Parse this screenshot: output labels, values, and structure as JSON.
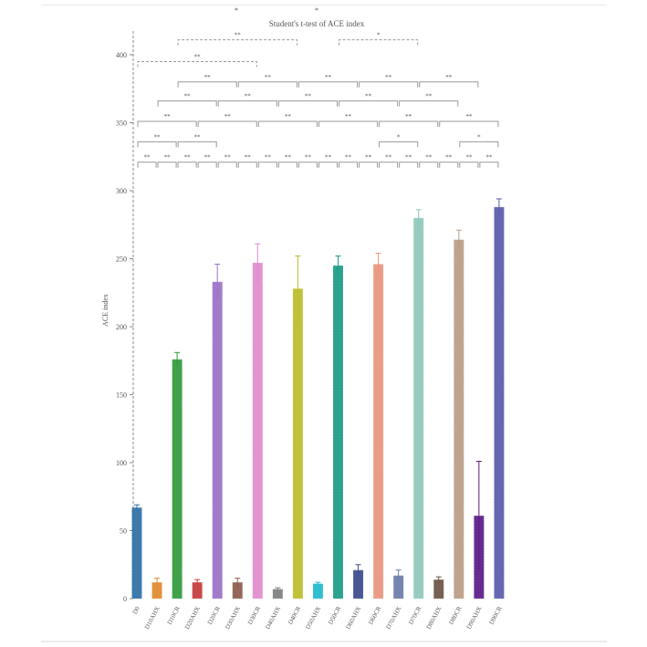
{
  "chart_data": {
    "type": "bar",
    "title": "Student's t-test of ACE index",
    "xlabel": "",
    "ylabel": "ACE index",
    "ylim": [
      0,
      420
    ],
    "yticks": [
      0,
      50,
      100,
      150,
      200,
      250,
      300,
      350,
      400
    ],
    "grid": false,
    "legend": "none",
    "categories": [
      "D0",
      "D10AHX",
      "D10CR",
      "D20AHX",
      "D20CR",
      "D30AHX",
      "D30CR",
      "D40AHX",
      "D40CR",
      "D50AHX",
      "D50CR",
      "D60AHX",
      "D60CR",
      "D70AHX",
      "D70CR",
      "D80AHX",
      "D80CR",
      "D90AHX",
      "D90CR"
    ],
    "values": [
      67,
      12,
      176,
      12,
      233,
      12,
      247,
      7,
      228,
      11,
      245,
      21,
      246,
      17,
      280,
      14,
      264,
      61,
      288
    ],
    "errors": [
      2,
      3,
      5,
      2,
      13,
      3,
      14,
      1,
      24,
      1,
      7,
      4,
      8,
      4,
      6,
      2,
      7,
      40,
      6
    ],
    "colors": [
      "#2f6fa6",
      "#e0892b",
      "#2f9a3c",
      "#c43a3c",
      "#9a70c6",
      "#8a5a4c",
      "#e08acc",
      "#7d7d7d",
      "#bcbd2a",
      "#20b8cc",
      "#1a9a88",
      "#3a4a8c",
      "#e8957c",
      "#6a7aa8",
      "#8cc8ba",
      "#6a5242",
      "#b89c84",
      "#5a1a86",
      "#5a5aaa"
    ],
    "significance": [
      {
        "a": 0,
        "b": 1,
        "y": 321,
        "label": "**"
      },
      {
        "a": 1,
        "b": 2,
        "y": 321,
        "label": "**"
      },
      {
        "a": 2,
        "b": 3,
        "y": 321,
        "label": "**"
      },
      {
        "a": 3,
        "b": 4,
        "y": 321,
        "label": "**"
      },
      {
        "a": 4,
        "b": 5,
        "y": 321,
        "label": "**"
      },
      {
        "a": 5,
        "b": 6,
        "y": 321,
        "label": "**"
      },
      {
        "a": 6,
        "b": 7,
        "y": 321,
        "label": "**"
      },
      {
        "a": 7,
        "b": 8,
        "y": 321,
        "label": "**"
      },
      {
        "a": 8,
        "b": 9,
        "y": 321,
        "label": "**"
      },
      {
        "a": 9,
        "b": 10,
        "y": 321,
        "label": "**"
      },
      {
        "a": 10,
        "b": 11,
        "y": 321,
        "label": "**"
      },
      {
        "a": 11,
        "b": 12,
        "y": 321,
        "label": "**"
      },
      {
        "a": 12,
        "b": 13,
        "y": 321,
        "label": "**"
      },
      {
        "a": 13,
        "b": 14,
        "y": 321,
        "label": "**"
      },
      {
        "a": 14,
        "b": 15,
        "y": 321,
        "label": "**"
      },
      {
        "a": 15,
        "b": 16,
        "y": 321,
        "label": "**"
      },
      {
        "a": 16,
        "b": 17,
        "y": 321,
        "label": "**"
      },
      {
        "a": 17,
        "b": 18,
        "y": 321,
        "label": "**"
      },
      {
        "a": 0,
        "b": 2,
        "y": 336,
        "label": "**"
      },
      {
        "a": 2,
        "b": 4,
        "y": 336,
        "label": "**"
      },
      {
        "a": 12,
        "b": 14,
        "y": 336,
        "label": "*"
      },
      {
        "a": 16,
        "b": 18,
        "y": 336,
        "label": "*"
      },
      {
        "a": 0,
        "b": 3,
        "y": 351,
        "label": "**"
      },
      {
        "a": 3,
        "b": 6,
        "y": 351,
        "label": "**"
      },
      {
        "a": 6,
        "b": 9,
        "y": 351,
        "label": "**"
      },
      {
        "a": 9,
        "b": 12,
        "y": 351,
        "label": "**"
      },
      {
        "a": 12,
        "b": 15,
        "y": 351,
        "label": "**"
      },
      {
        "a": 15,
        "b": 18,
        "y": 351,
        "label": "**"
      },
      {
        "a": 1,
        "b": 4,
        "y": 366,
        "label": "**"
      },
      {
        "a": 4,
        "b": 7,
        "y": 366,
        "label": "**"
      },
      {
        "a": 7,
        "b": 10,
        "y": 366,
        "label": "**"
      },
      {
        "a": 10,
        "b": 13,
        "y": 366,
        "label": "**"
      },
      {
        "a": 13,
        "b": 16,
        "y": 366,
        "label": "**"
      },
      {
        "a": 2,
        "b": 5,
        "y": 380,
        "label": "**"
      },
      {
        "a": 5,
        "b": 8,
        "y": 380,
        "label": "**"
      },
      {
        "a": 8,
        "b": 11,
        "y": 380,
        "label": "**"
      },
      {
        "a": 11,
        "b": 14,
        "y": 380,
        "label": "**"
      },
      {
        "a": 14,
        "b": 17,
        "y": 380,
        "label": "**"
      },
      {
        "a": 0,
        "b": 6,
        "y": 395,
        "label": "**"
      },
      {
        "a": 2,
        "b": 8,
        "y": 411,
        "label": "**"
      },
      {
        "a": 10,
        "b": 14,
        "y": 411,
        "label": "*"
      }
    ],
    "stray_marks": [
      "*",
      "*"
    ]
  }
}
